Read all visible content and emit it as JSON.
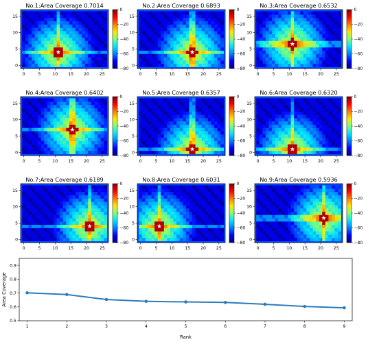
{
  "colors": {
    "line": "#2b7bba",
    "colormap": [
      "#00007f",
      "#0000ff",
      "#0080ff",
      "#00e5ff",
      "#7dff7a",
      "#ffe600",
      "#ff7a00",
      "#ff0000",
      "#7f0000"
    ],
    "bg_level": -64
  },
  "colorbar": {
    "ticks": [
      0,
      -20,
      -40,
      -60,
      -80
    ]
  },
  "heatmap_axes": {
    "xticks": [
      0,
      5,
      10,
      15,
      20,
      25
    ],
    "yticks": [
      0,
      5,
      10,
      15
    ],
    "row_has_yticks": [
      true,
      true,
      true
    ]
  },
  "chart_data": [
    {
      "type": "heatmap",
      "title": "No.1:Area Coverage 0.7014",
      "marker": [
        11,
        4
      ]
    },
    {
      "type": "heatmap",
      "title": "No.2:Area Coverage 0.6893",
      "marker": [
        16.5,
        4
      ]
    },
    {
      "type": "heatmap",
      "title": "No.3:Area Coverage 0.6532",
      "marker": [
        11,
        6.5
      ]
    },
    {
      "type": "heatmap",
      "title": "No.4:Area Coverage 0.6402",
      "marker": [
        15.5,
        7
      ]
    },
    {
      "type": "heatmap",
      "title": "No.5:Area Coverage 0.6357",
      "marker": [
        16.5,
        1
      ]
    },
    {
      "type": "heatmap",
      "title": "No.6:Area Coverage 0.6320",
      "marker": [
        11,
        1
      ]
    },
    {
      "type": "heatmap",
      "title": "No.7:Area Coverage 0.6189",
      "marker": [
        21,
        4
      ]
    },
    {
      "type": "heatmap",
      "title": "No.8:Area Coverage 0.6031",
      "marker": [
        6,
        4
      ]
    },
    {
      "type": "heatmap",
      "title": "No.9:Area Coverage 0.5936",
      "marker": [
        21,
        6.5
      ]
    },
    {
      "type": "line",
      "xlabel": "Rank",
      "ylabel": "Area Coverage",
      "x": [
        1,
        2,
        3,
        4,
        5,
        6,
        7,
        8,
        9
      ],
      "values": [
        0.7014,
        0.6893,
        0.6532,
        0.6402,
        0.6357,
        0.632,
        0.6189,
        0.6031,
        0.5936
      ],
      "xticks": [
        1,
        2,
        3,
        4,
        5,
        6,
        7,
        8,
        9
      ],
      "yticks": [
        0.5,
        0.6,
        0.7,
        0.8,
        0.9
      ],
      "xlim": [
        0.8,
        9.2
      ],
      "ylim": [
        0.5,
        0.95
      ]
    }
  ]
}
